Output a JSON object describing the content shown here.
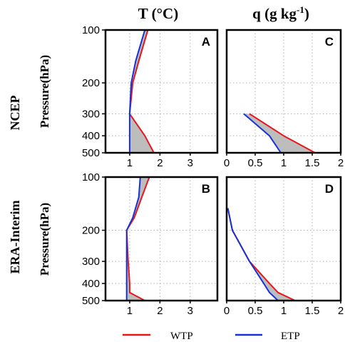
{
  "column_titles": {
    "t": "T (°C)",
    "q_main": "q (g kg",
    "q_exp": "-1",
    "q_close": ")"
  },
  "row_labels": {
    "top": "NCEP",
    "bottom": "ERA-Interim"
  },
  "y_axis_title": "Pressure(hPa)",
  "legend": [
    {
      "label": "WTP",
      "color": "#e8161b"
    },
    {
      "label": "ETP",
      "color": "#1733d6"
    }
  ],
  "colors": {
    "wtp": "#e8161b",
    "etp": "#1733d6",
    "fill": "#bdbdbd",
    "frame": "#000000",
    "grid": "#b0b0b0"
  },
  "chart_data": [
    {
      "panel": "A",
      "type": "line",
      "yscale": "log",
      "ylim": [
        500,
        100
      ],
      "yticks": [
        100,
        200,
        300,
        400,
        500
      ],
      "xlim": [
        0.2,
        3.9
      ],
      "xticks": [
        1,
        2,
        3
      ],
      "grid": true,
      "shaded_between_series": true,
      "series": [
        {
          "name": "WTP",
          "x": [
            1.8,
            1.5,
            1.0,
            1.1,
            1.3,
            1.6
          ],
          "y": [
            500,
            400,
            300,
            200,
            150,
            100
          ]
        },
        {
          "name": "ETP",
          "x": [
            1.0,
            1.0,
            1.0,
            1.05,
            1.2,
            1.5
          ],
          "y": [
            500,
            400,
            300,
            200,
            150,
            100
          ]
        }
      ]
    },
    {
      "panel": "B",
      "type": "line",
      "yscale": "log",
      "ylim": [
        500,
        100
      ],
      "yticks": [
        100,
        200,
        300,
        400,
        500
      ],
      "xlim": [
        0.2,
        3.9
      ],
      "xticks": [
        1,
        2,
        3
      ],
      "grid": true,
      "shaded_between_series": true,
      "series": [
        {
          "name": "WTP",
          "x": [
            1.5,
            1.0,
            1.0,
            0.95,
            0.9,
            1.15,
            1.4,
            1.65
          ],
          "y": [
            500,
            450,
            400,
            300,
            200,
            170,
            130,
            100
          ]
        },
        {
          "name": "ETP",
          "x": [
            0.9,
            0.9,
            0.9,
            0.9,
            0.9,
            1.1,
            1.3,
            1.35
          ],
          "y": [
            500,
            450,
            400,
            300,
            200,
            170,
            130,
            100
          ]
        }
      ]
    },
    {
      "panel": "C",
      "type": "line",
      "yscale": "log",
      "ylim": [
        500,
        100
      ],
      "xlim": [
        0,
        2
      ],
      "xticks": [
        0,
        0.5,
        1,
        1.5,
        2
      ],
      "grid": true,
      "shaded_between_series": true,
      "series": [
        {
          "name": "WTP",
          "x": [
            1.55,
            1.0,
            0.4
          ],
          "y": [
            500,
            400,
            300
          ]
        },
        {
          "name": "ETP",
          "x": [
            0.95,
            0.75,
            0.3
          ],
          "y": [
            500,
            400,
            300
          ]
        }
      ]
    },
    {
      "panel": "D",
      "type": "line",
      "yscale": "log",
      "ylim": [
        500,
        100
      ],
      "xlim": [
        0,
        2
      ],
      "xticks": [
        0,
        0.5,
        1,
        1.5,
        2
      ],
      "grid": true,
      "shaded_between_series": true,
      "series": [
        {
          "name": "WTP",
          "x": [
            1.2,
            0.9,
            0.75,
            0.4,
            0.1,
            0.02
          ],
          "y": [
            500,
            450,
            400,
            300,
            200,
            150
          ]
        },
        {
          "name": "ETP",
          "x": [
            0.9,
            0.75,
            0.65,
            0.4,
            0.1,
            0.02
          ],
          "y": [
            500,
            450,
            400,
            300,
            200,
            150
          ]
        }
      ]
    }
  ]
}
